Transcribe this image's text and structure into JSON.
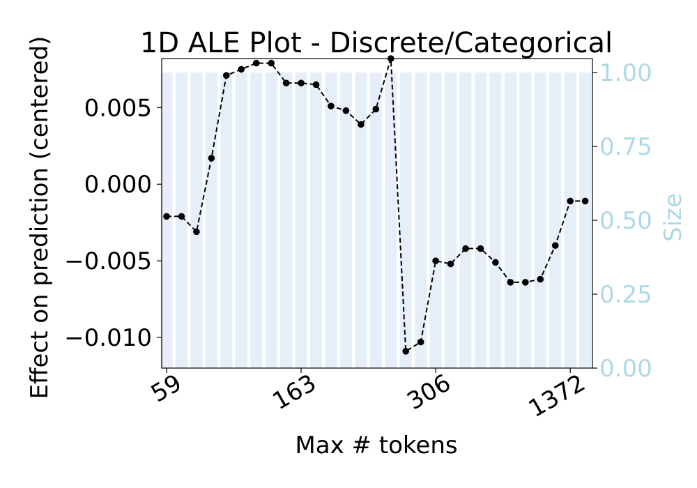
{
  "chart_data": {
    "type": "line",
    "title": "1D ALE Plot - Discrete/Categorical",
    "xlabel": "Max # tokens",
    "ylabel": "Effect on prediction (centered)",
    "y2label": "Size",
    "colors": {
      "line": "#000000",
      "bars": "#e6eef7",
      "secondary_axis": "#add8e6"
    },
    "x_tick_labels": [
      "59",
      "163",
      "306",
      "1372"
    ],
    "x_tick_indices": [
      0,
      9,
      18,
      27
    ],
    "y_ticks": [
      0.005,
      0.0,
      -0.005,
      -0.01
    ],
    "y_tick_labels": [
      "0.005",
      "0.000",
      "−0.005",
      "−0.010"
    ],
    "y_range": [
      -0.012,
      0.0082
    ],
    "y2_ticks": [
      0.0,
      0.25,
      0.5,
      0.75,
      1.0
    ],
    "y2_tick_labels": [
      "0.00",
      "0.25",
      "0.50",
      "0.75",
      "1.00"
    ],
    "y2_range": [
      0.0,
      1.0
    ],
    "x_range": [
      -0.3,
      28.5
    ],
    "values": [
      -0.0021,
      -0.0021,
      -0.0031,
      0.0017,
      0.0071,
      0.0075,
      0.0079,
      0.0079,
      0.0066,
      0.0066,
      0.0065,
      0.0051,
      0.0048,
      0.0039,
      0.0049,
      0.0082,
      -0.0109,
      -0.0103,
      -0.005,
      -0.0052,
      -0.0042,
      -0.0042,
      -0.0051,
      -0.0064,
      -0.0064,
      -0.0062,
      -0.004,
      -0.0011,
      -0.0011
    ],
    "size_values": [
      1,
      1,
      1,
      1,
      1,
      1,
      1,
      1,
      1,
      1,
      1,
      1,
      1,
      1,
      1,
      1,
      1,
      1,
      1,
      1,
      1,
      1,
      1,
      1,
      1,
      1,
      1,
      1,
      1
    ]
  }
}
